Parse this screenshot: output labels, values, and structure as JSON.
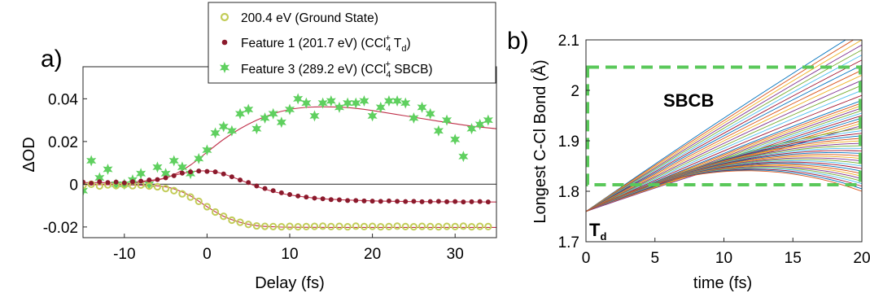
{
  "chart_data": [
    {
      "type": "scatter",
      "panel_label": "a)",
      "xlabel": "Delay (fs)",
      "ylabel": "ΔOD",
      "xlim": [
        -15,
        35
      ],
      "ylim": [
        -0.025,
        0.055
      ],
      "xticks": [
        -10,
        0,
        10,
        20,
        30
      ],
      "yticks": [
        -0.02,
        0,
        0.02,
        0.04
      ],
      "ytick_labels": [
        "-0.02",
        "0",
        "0.02",
        "0.04"
      ],
      "zero_line": true,
      "legend": {
        "placement": "top-center",
        "entries": [
          {
            "marker": "open-circle",
            "text": "200.4 eV (Ground State)"
          },
          {
            "marker": "dot",
            "text_pre": "Feature 1 (201.7 eV) (CCl",
            "sub": "4",
            "sup": "+",
            "text_mid": " T",
            "sub2": "d",
            "text_post": ")"
          },
          {
            "marker": "star",
            "text_pre": "Feature 3 (289.2 eV) (CCl",
            "sub": "4",
            "sup": "+",
            "text_post": " SBCB)"
          }
        ]
      },
      "colors": {
        "ground": "#c2cc58",
        "feature1": "#8b1a2c",
        "feature3": "#5fd05f",
        "fit": "#c0304a"
      },
      "series": [
        {
          "name": "200.4 eV (Ground State)",
          "marker": "open-circle",
          "x": [
            -15,
            -14,
            -13,
            -12,
            -11,
            -10,
            -9,
            -8,
            -7,
            -6,
            -5,
            -4,
            -3,
            -2,
            -1,
            0,
            1,
            2,
            3,
            4,
            5,
            6,
            7,
            8,
            9,
            10,
            11,
            12,
            13,
            14,
            15,
            16,
            17,
            18,
            19,
            20,
            21,
            22,
            23,
            24,
            25,
            26,
            27,
            28,
            29,
            30,
            31,
            32,
            33,
            34
          ],
          "y": [
            -0.0005,
            0,
            -0.0008,
            -0.0003,
            -0.0006,
            -0.0003,
            -0.0007,
            -0.0004,
            -0.0008,
            -0.0012,
            -0.002,
            -0.003,
            -0.0045,
            -0.006,
            -0.008,
            -0.0105,
            -0.013,
            -0.015,
            -0.0168,
            -0.0178,
            -0.0188,
            -0.0195,
            -0.0197,
            -0.0198,
            -0.0199,
            -0.0197,
            -0.0199,
            -0.0198,
            -0.0197,
            -0.0196,
            -0.0198,
            -0.0197,
            -0.0199,
            -0.0196,
            -0.0198,
            -0.0197,
            -0.0199,
            -0.0198,
            -0.0196,
            -0.0198,
            -0.0199,
            -0.0197,
            -0.0198,
            -0.0199,
            -0.0197,
            -0.0198,
            -0.0196,
            -0.0199,
            -0.0197,
            -0.0198
          ]
        },
        {
          "name": "Feature 1 (201.7 eV) (CCl4+ Td)",
          "marker": "dot",
          "x": [
            -15,
            -14,
            -13,
            -12,
            -11,
            -10,
            -9,
            -8,
            -7,
            -6,
            -5,
            -4,
            -3,
            -2,
            -1,
            0,
            1,
            2,
            3,
            4,
            5,
            6,
            7,
            8,
            9,
            10,
            11,
            12,
            13,
            14,
            15,
            16,
            17,
            18,
            19,
            20,
            21,
            22,
            23,
            24,
            25,
            26,
            27,
            28,
            29,
            30,
            31,
            32,
            33,
            34
          ],
          "y": [
            0.001,
            0.0005,
            0.0012,
            0.0008,
            0.001,
            0.0006,
            0.0012,
            0.0015,
            0.002,
            0.0022,
            0.003,
            0.004,
            0.0052,
            0.0058,
            0.0062,
            0.006,
            0.0058,
            0.0048,
            0.0035,
            0.002,
            0.0008,
            -0.0008,
            -0.002,
            -0.003,
            -0.004,
            -0.0048,
            -0.0055,
            -0.006,
            -0.0065,
            -0.0068,
            -0.0072,
            -0.0073,
            -0.0076,
            -0.0076,
            -0.0078,
            -0.0079,
            -0.008,
            -0.0078,
            -0.008,
            -0.0081,
            -0.008,
            -0.0082,
            -0.0081,
            -0.008,
            -0.0082,
            -0.0081,
            -0.0083,
            -0.0082,
            -0.0081,
            -0.0083
          ]
        },
        {
          "name": "Feature 3 (289.2 eV) (CCl4+ SBCB)",
          "marker": "star",
          "x": [
            -15,
            -14,
            -13,
            -12,
            -11,
            -10,
            -9,
            -8,
            -7,
            -6,
            -5,
            -4,
            -3,
            -2,
            -1,
            0,
            1,
            2,
            3,
            4,
            5,
            6,
            7,
            8,
            9,
            10,
            11,
            12,
            13,
            14,
            15,
            16,
            17,
            18,
            19,
            20,
            21,
            22,
            23,
            24,
            25,
            26,
            27,
            28,
            29,
            30,
            31,
            32,
            33,
            34
          ],
          "y": [
            -0.003,
            0.011,
            0.003,
            0.007,
            0.0,
            0.0,
            0.002,
            0.005,
            0.0,
            0.008,
            0.005,
            0.011,
            0.008,
            0.005,
            0.012,
            0.016,
            0.024,
            0.027,
            0.025,
            0.033,
            0.035,
            0.026,
            0.031,
            0.033,
            0.029,
            0.035,
            0.04,
            0.038,
            0.032,
            0.038,
            0.039,
            0.036,
            0.038,
            0.038,
            0.039,
            0.032,
            0.036,
            0.039,
            0.039,
            0.038,
            0.031,
            0.036,
            0.033,
            0.025,
            0.03,
            0.021,
            0.013,
            0.026,
            0.028,
            0.03
          ]
        }
      ],
      "fits": [
        {
          "of": "ground",
          "x": [
            -15,
            -10,
            -6,
            -4,
            -2,
            0,
            2,
            4,
            6,
            8,
            10,
            15,
            20,
            25,
            30,
            35
          ],
          "y": [
            -0.0002,
            -0.0003,
            -0.0008,
            -0.0022,
            -0.0055,
            -0.0105,
            -0.015,
            -0.0178,
            -0.0194,
            -0.0199,
            -0.0201,
            -0.0202,
            -0.0202,
            -0.0202,
            -0.0202,
            -0.0202
          ]
        },
        {
          "of": "feature1",
          "x": [
            -15,
            -10,
            -6,
            -4,
            -2,
            -1,
            0,
            1,
            2,
            4,
            6,
            8,
            10,
            14,
            20,
            25,
            30,
            35
          ],
          "y": [
            0.0008,
            0.0009,
            0.0022,
            0.0042,
            0.0058,
            0.0062,
            0.0062,
            0.0058,
            0.0048,
            0.002,
            -0.001,
            -0.0034,
            -0.005,
            -0.0068,
            -0.0078,
            -0.0081,
            -0.0082,
            -0.0083
          ]
        },
        {
          "of": "feature3",
          "x": [
            -15,
            -10,
            -6,
            -4,
            -2,
            0,
            2,
            4,
            6,
            8,
            10,
            12,
            14,
            16,
            18,
            20,
            24,
            28,
            32,
            35
          ],
          "y": [
            0.0,
            0.0002,
            0.002,
            0.0045,
            0.009,
            0.015,
            0.021,
            0.026,
            0.03,
            0.033,
            0.035,
            0.036,
            0.0362,
            0.0361,
            0.0355,
            0.0345,
            0.032,
            0.0295,
            0.0272,
            0.026
          ]
        }
      ]
    },
    {
      "type": "line",
      "panel_label": "b)",
      "xlabel": "time (fs)",
      "ylabel": "Longest C-Cl Bond (Å)",
      "xlim": [
        0,
        20
      ],
      "ylim": [
        1.7,
        2.1
      ],
      "xticks": [
        0,
        5,
        10,
        15,
        20
      ],
      "yticks": [
        1.7,
        1.8,
        1.9,
        2.0,
        2.1
      ],
      "ytick_labels": [
        "1.7",
        "1.8",
        "1.9",
        "2",
        "2.1"
      ],
      "start": {
        "x": 0,
        "y": 1.76
      },
      "end_values_at_20fs": [
        2.12,
        2.11,
        2.1,
        2.09,
        2.08,
        2.07,
        2.06,
        2.05,
        2.04,
        2.03,
        2.02,
        2.01,
        2.0,
        1.99,
        1.98,
        1.975,
        1.97,
        1.965,
        1.96,
        1.955,
        1.95,
        1.945,
        1.94,
        1.935,
        1.93,
        1.925,
        1.92,
        1.915,
        1.91,
        1.905,
        1.9,
        1.895,
        1.89,
        1.885,
        1.88,
        1.875,
        1.87,
        1.865,
        1.86,
        1.855,
        1.85,
        1.845,
        1.84,
        1.835,
        1.83,
        1.825,
        1.82,
        1.815,
        1.81,
        1.805,
        1.8
      ],
      "line_colors": [
        "#0072bd",
        "#d95319",
        "#edb120",
        "#7e2f8e",
        "#77ac30",
        "#4dbeee",
        "#a2142f"
      ],
      "box": {
        "label": "SBCB",
        "x0": 0,
        "x1": 20,
        "y0": 1.813,
        "y1": 2.046,
        "color": "#5ac85a"
      },
      "annotation": {
        "text": "T",
        "sub": "d",
        "color": "#a01b33"
      }
    }
  ]
}
